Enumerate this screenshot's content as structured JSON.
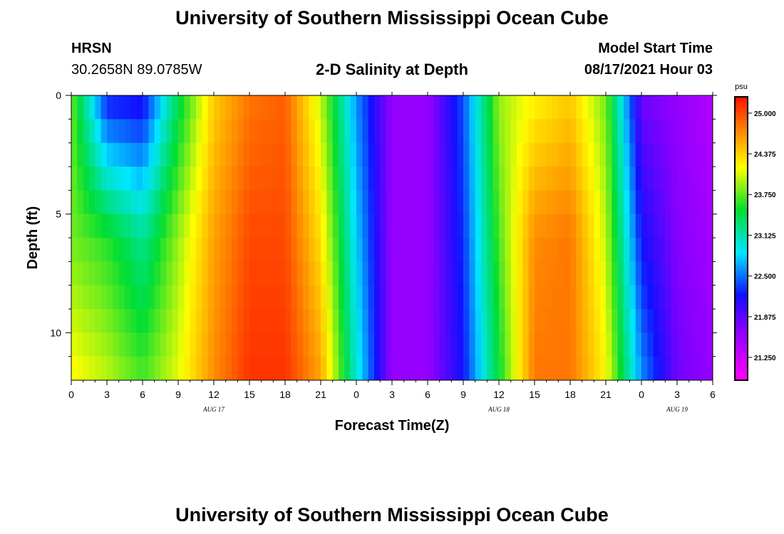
{
  "header": {
    "title_top": "University of Southern Mississippi Ocean Cube",
    "title_bottom": "University of Southern Mississippi Ocean Cube",
    "station": "HRSN",
    "coords": "30.2658N  89.0785W",
    "plot_title": "2-D Salinity at Depth",
    "model_label": "Model Start Time",
    "model_time": "08/17/2021 Hour 03"
  },
  "chart_data": {
    "type": "heatmap",
    "title": "2-D Salinity at Depth",
    "xlabel": "Forecast Time(Z)",
    "ylabel": "Depth (ft)",
    "x_tick_labels": [
      "0",
      "3",
      "6",
      "9",
      "12",
      "15",
      "18",
      "21",
      "0",
      "3",
      "6",
      "9",
      "12",
      "15",
      "18",
      "21",
      "0",
      "3",
      "6"
    ],
    "x_date_labels": [
      {
        "label": "AUG 17",
        "at_hour": 12
      },
      {
        "label": "AUG 18",
        "at_hour": 36
      },
      {
        "label": "AUG 19",
        "at_hour": 51
      }
    ],
    "xlim_hours": [
      0,
      54
    ],
    "y_tick_labels": [
      "0",
      "5",
      "10"
    ],
    "ylim_ft": [
      0,
      12
    ],
    "colorbar": {
      "unit": "psu",
      "ticks": [
        "25.000",
        "24.375",
        "23.750",
        "23.125",
        "22.500",
        "21.875",
        "21.250"
      ],
      "range": [
        20.9,
        25.25
      ]
    },
    "time_hours": [
      0,
      3,
      6,
      9,
      12,
      15,
      18,
      21,
      24,
      27,
      30,
      33,
      36,
      39,
      42,
      45,
      48,
      51,
      54
    ],
    "depth_ft": [
      0,
      6,
      12
    ],
    "salinity_psu": [
      [
        23.8,
        22.2,
        22.1,
        23.4,
        24.4,
        24.8,
        24.9,
        24.0,
        22.6,
        21.6,
        21.6,
        22.4,
        23.9,
        24.2,
        24.4,
        23.8,
        21.8,
        21.6,
        21.4
      ],
      [
        23.8,
        23.6,
        23.2,
        23.9,
        24.6,
        25.0,
        25.0,
        24.3,
        22.8,
        21.6,
        21.6,
        22.3,
        23.7,
        24.7,
        24.8,
        24.0,
        22.2,
        21.7,
        21.5
      ],
      [
        24.2,
        24.0,
        23.7,
        24.1,
        24.7,
        25.1,
        25.1,
        24.6,
        23.0,
        21.6,
        21.6,
        22.2,
        23.5,
        24.8,
        24.8,
        24.2,
        22.6,
        21.8,
        21.6
      ]
    ]
  }
}
